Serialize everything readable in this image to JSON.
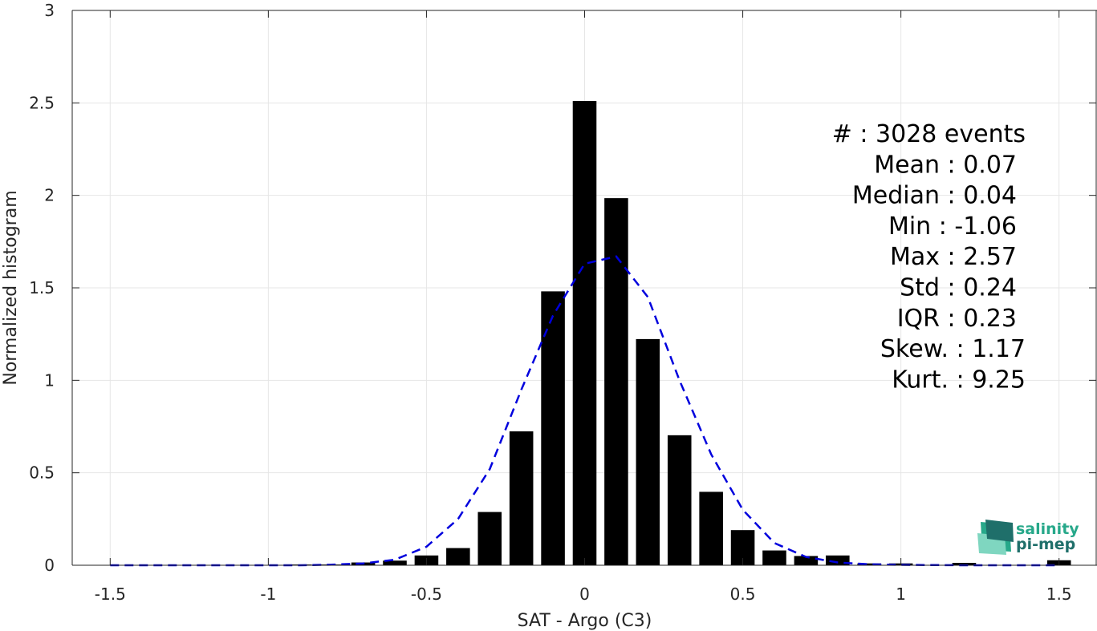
{
  "chart_data": {
    "type": "bar",
    "xlabel": "SAT - Argo (C3)",
    "ylabel": "Normalized histogram",
    "xlim": [
      -1.62,
      1.62
    ],
    "ylim": [
      0,
      3
    ],
    "grid": true,
    "x_ticks": [
      -1.5,
      -1,
      -0.5,
      0,
      0.5,
      1,
      1.5
    ],
    "x_tick_labels": [
      "-1.5",
      "-1",
      "-0.5",
      "0",
      "0.5",
      "1",
      "1.5"
    ],
    "y_ticks": [
      0,
      0.5,
      1,
      1.5,
      2,
      2.5,
      3
    ],
    "y_tick_labels": [
      "0",
      "0.5",
      "1",
      "1.5",
      "2",
      "2.5",
      "3"
    ],
    "bar_width": 0.075,
    "bins": [
      -0.9,
      -0.8,
      -0.7,
      -0.6,
      -0.5,
      -0.4,
      -0.3,
      -0.2,
      -0.1,
      0.0,
      0.1,
      0.2,
      0.3,
      0.4,
      0.5,
      0.6,
      0.7,
      0.8,
      0.9,
      1.0,
      1.2,
      1.5
    ],
    "values": [
      0.004,
      0.004,
      0.015,
      0.025,
      0.053,
      0.093,
      0.288,
      0.724,
      1.481,
      2.51,
      1.985,
      1.223,
      0.703,
      0.397,
      0.19,
      0.08,
      0.05,
      0.053,
      0.01,
      0.01,
      0.013,
      0.027
    ],
    "bar_color": "#000000",
    "fit_curve": {
      "style": "dashed",
      "color": "#0000dd",
      "x": [
        -1.5,
        -1.3,
        -1.1,
        -0.9,
        -0.8,
        -0.7,
        -0.6,
        -0.5,
        -0.4,
        -0.3,
        -0.2,
        -0.1,
        0.0,
        0.1,
        0.2,
        0.3,
        0.4,
        0.5,
        0.6,
        0.7,
        0.8,
        0.9,
        1.0,
        1.2,
        1.5
      ],
      "y": [
        0.0,
        0.0,
        0.0,
        0.0,
        0.003,
        0.01,
        0.03,
        0.1,
        0.25,
        0.52,
        0.95,
        1.35,
        1.63,
        1.67,
        1.45,
        1.0,
        0.6,
        0.3,
        0.12,
        0.045,
        0.015,
        0.005,
        0.002,
        0.0,
        0.0
      ]
    },
    "annotation": {
      "placement": "top-right",
      "lines": [
        "#  : 3028 events",
        "Mean : 0.07",
        "Median : 0.04",
        "Min : -1.06",
        "Max : 2.57",
        "Std : 0.24",
        "IQR : 0.23",
        "Skew. : 1.17",
        "Kurt. : 9.25"
      ]
    }
  },
  "logo": {
    "line1": "salinity",
    "line2": "pi-mep",
    "colors": [
      "#27a88a",
      "#1f6f6a",
      "#7fd6c0"
    ]
  }
}
